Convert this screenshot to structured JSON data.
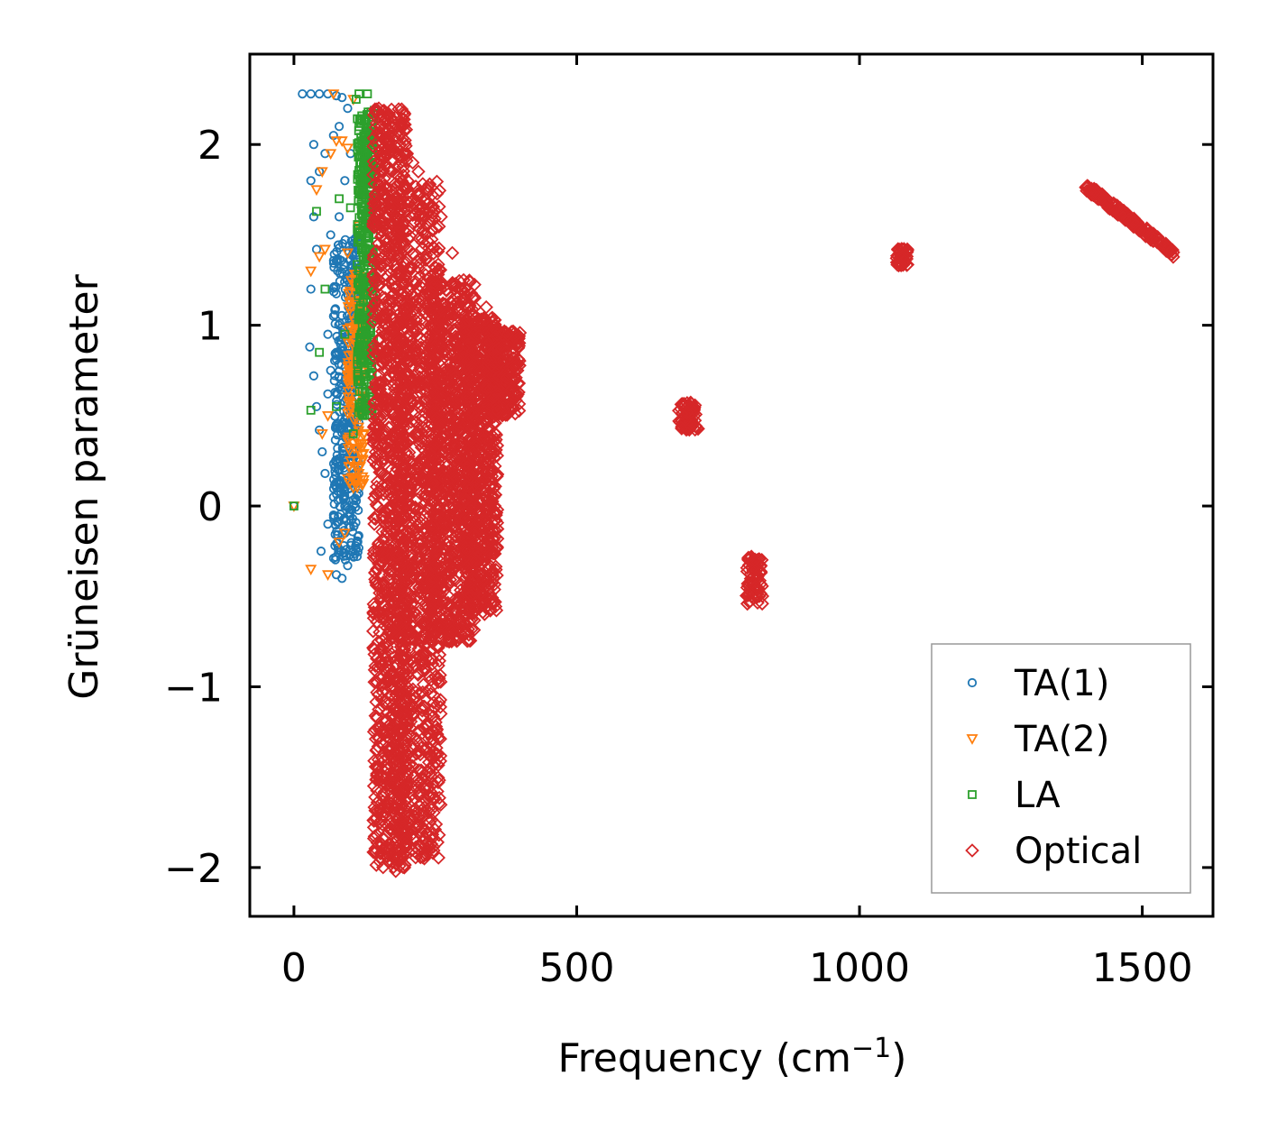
{
  "chart_data": {
    "type": "scatter",
    "title": "",
    "xlabel": "Frequency (cm",
    "xlabel_superscript": "−1",
    "xlabel_close": ")",
    "ylabel": "Grüneisen parameter",
    "xlim": [
      -78,
      1625
    ],
    "ylim": [
      -2.27,
      2.5
    ],
    "xticks": [
      0,
      500,
      1000,
      1500
    ],
    "xtick_labels": [
      "0",
      "500",
      "1000",
      "1500"
    ],
    "yticks": [
      -2,
      -1,
      0,
      1,
      2
    ],
    "ytick_labels": [
      "−2",
      "−1",
      "0",
      "1",
      "2"
    ],
    "grid": false,
    "legend_position": "lower-right",
    "series": [
      {
        "name": "TA(1)",
        "marker": "circle",
        "color": "#1f77b4",
        "points": [
          [
            0,
            0
          ],
          [
            15,
            2.28
          ],
          [
            30,
            2.28
          ],
          [
            45,
            2.28
          ],
          [
            60,
            2.28
          ],
          [
            75,
            2.27
          ],
          [
            85,
            2.26
          ],
          [
            30,
            1.8
          ],
          [
            35,
            2.0
          ],
          [
            45,
            1.85
          ],
          [
            35,
            1.6
          ],
          [
            40,
            1.42
          ],
          [
            30,
            1.2
          ],
          [
            28,
            0.88
          ],
          [
            35,
            0.72
          ],
          [
            40,
            0.55
          ],
          [
            45,
            0.42
          ],
          [
            50,
            0.3
          ],
          [
            55,
            0.18
          ],
          [
            48,
            -0.25
          ],
          [
            60,
            -0.1
          ],
          [
            70,
            -0.05
          ],
          [
            75,
            -0.38
          ],
          [
            85,
            -0.4
          ],
          [
            95,
            -0.33
          ],
          [
            90,
            -0.15
          ],
          [
            80,
            2.1
          ],
          [
            70,
            2.05
          ],
          [
            55,
            1.95
          ],
          [
            90,
            1.8
          ],
          [
            100,
            1.95
          ],
          [
            95,
            2.2
          ],
          [
            80,
            1.6
          ],
          [
            65,
            1.5
          ],
          [
            70,
            1.05
          ],
          [
            60,
            0.95
          ],
          [
            75,
            0.85
          ],
          [
            60,
            0.62
          ],
          [
            65,
            0.75
          ],
          [
            75,
            0.45
          ],
          [
            85,
            0.35
          ],
          [
            80,
            0.2
          ],
          [
            70,
            0.05
          ],
          [
            90,
            0.0
          ]
        ],
        "clusters": [
          {
            "x": [
              70,
              115
            ],
            "y": [
              -0.3,
              1.5
            ],
            "count": 420
          }
        ]
      },
      {
        "name": "TA(2)",
        "marker": "triangle-down",
        "color": "#ff7f0e",
        "points": [
          [
            0,
            0
          ],
          [
            30,
            -0.35
          ],
          [
            60,
            -0.38
          ],
          [
            40,
            1.75
          ],
          [
            50,
            1.85
          ],
          [
            65,
            1.95
          ],
          [
            75,
            2.02
          ],
          [
            85,
            2.02
          ],
          [
            95,
            1.98
          ],
          [
            105,
            2.25
          ],
          [
            70,
            2.28
          ],
          [
            30,
            1.3
          ],
          [
            45,
            1.38
          ],
          [
            55,
            1.42
          ],
          [
            50,
            0.4
          ],
          [
            60,
            0.5
          ],
          [
            80,
            -0.2
          ],
          [
            90,
            -0.15
          ],
          [
            100,
            0.25
          ],
          [
            105,
            0.1
          ],
          [
            110,
            0.6
          ],
          [
            95,
            1.4
          ],
          [
            110,
            1.2
          ],
          [
            115,
            1.55
          ],
          [
            120,
            1.72
          ],
          [
            125,
            0.8
          ],
          [
            100,
            0.95
          ]
        ],
        "clusters": [
          {
            "x": [
              95,
              125
            ],
            "y": [
              0.1,
              1.3
            ],
            "count": 160
          }
        ]
      },
      {
        "name": "LA",
        "marker": "square",
        "color": "#2ca02c",
        "points": [
          [
            0,
            0
          ],
          [
            30,
            0.53
          ],
          [
            40,
            1.63
          ],
          [
            55,
            1.2
          ],
          [
            80,
            1.7
          ],
          [
            90,
            0.95
          ],
          [
            100,
            1.65
          ],
          [
            105,
            0.4
          ],
          [
            110,
            2.25
          ],
          [
            115,
            2.28
          ],
          [
            118,
            2.12
          ],
          [
            120,
            2.02
          ],
          [
            125,
            1.95
          ],
          [
            128,
            1.8
          ],
          [
            130,
            2.28
          ],
          [
            122,
            0.5
          ],
          [
            75,
            0.55
          ],
          [
            45,
            0.85
          ]
        ],
        "clusters": [
          {
            "x": [
              112,
              142
            ],
            "y": [
              0.5,
              2.2
            ],
            "count": 380
          }
        ]
      },
      {
        "name": "Optical",
        "marker": "diamond",
        "color": "#d62728",
        "points": [
          [
            150,
            2.2
          ],
          [
            170,
            2.1
          ],
          [
            190,
            2.1
          ],
          [
            200,
            1.95
          ],
          [
            210,
            1.9
          ],
          [
            220,
            1.85
          ],
          [
            240,
            1.78
          ],
          [
            260,
            1.6
          ],
          [
            280,
            1.4
          ],
          [
            300,
            1.25
          ],
          [
            320,
            1.1
          ],
          [
            340,
            1.1
          ],
          [
            180,
            -2.02
          ],
          [
            185,
            -1.95
          ],
          [
            200,
            -1.8
          ],
          [
            220,
            -1.9
          ],
          [
            230,
            -1.85
          ],
          [
            240,
            -1.75
          ],
          [
            155,
            -0.8
          ],
          [
            165,
            -1.25
          ],
          [
            170,
            -1.55
          ],
          [
            190,
            -1.65
          ],
          [
            215,
            -1.7
          ],
          [
            350,
            -0.42
          ],
          [
            345,
            -0.2
          ],
          [
            355,
            0.0
          ]
        ],
        "clusters": [
          {
            "x": [
              140,
              200
            ],
            "y": [
              -2.0,
              2.2
            ],
            "count": 1200
          },
          {
            "x": [
              180,
              260
            ],
            "y": [
              -1.95,
              1.8
            ],
            "count": 1100
          },
          {
            "x": [
              240,
              320
            ],
            "y": [
              -0.75,
              1.25
            ],
            "count": 900
          },
          {
            "x": [
              300,
              360
            ],
            "y": [
              -0.6,
              1.05
            ],
            "count": 700
          },
          {
            "x": [
              340,
              400
            ],
            "y": [
              0.5,
              0.98
            ],
            "count": 260
          },
          {
            "x": [
              680,
              715
            ],
            "y": [
              0.42,
              0.58
            ],
            "count": 70
          },
          {
            "x": [
              800,
              830
            ],
            "y": [
              -0.55,
              -0.28
            ],
            "count": 70
          },
          {
            "x": [
              1065,
              1085
            ],
            "y": [
              1.33,
              1.43
            ],
            "count": 40
          }
        ],
        "lines": [
          {
            "x": [
              1400,
              1555
            ],
            "y": [
              1.77,
              1.4
            ],
            "count": 200,
            "spread": 0.025
          }
        ]
      }
    ]
  }
}
